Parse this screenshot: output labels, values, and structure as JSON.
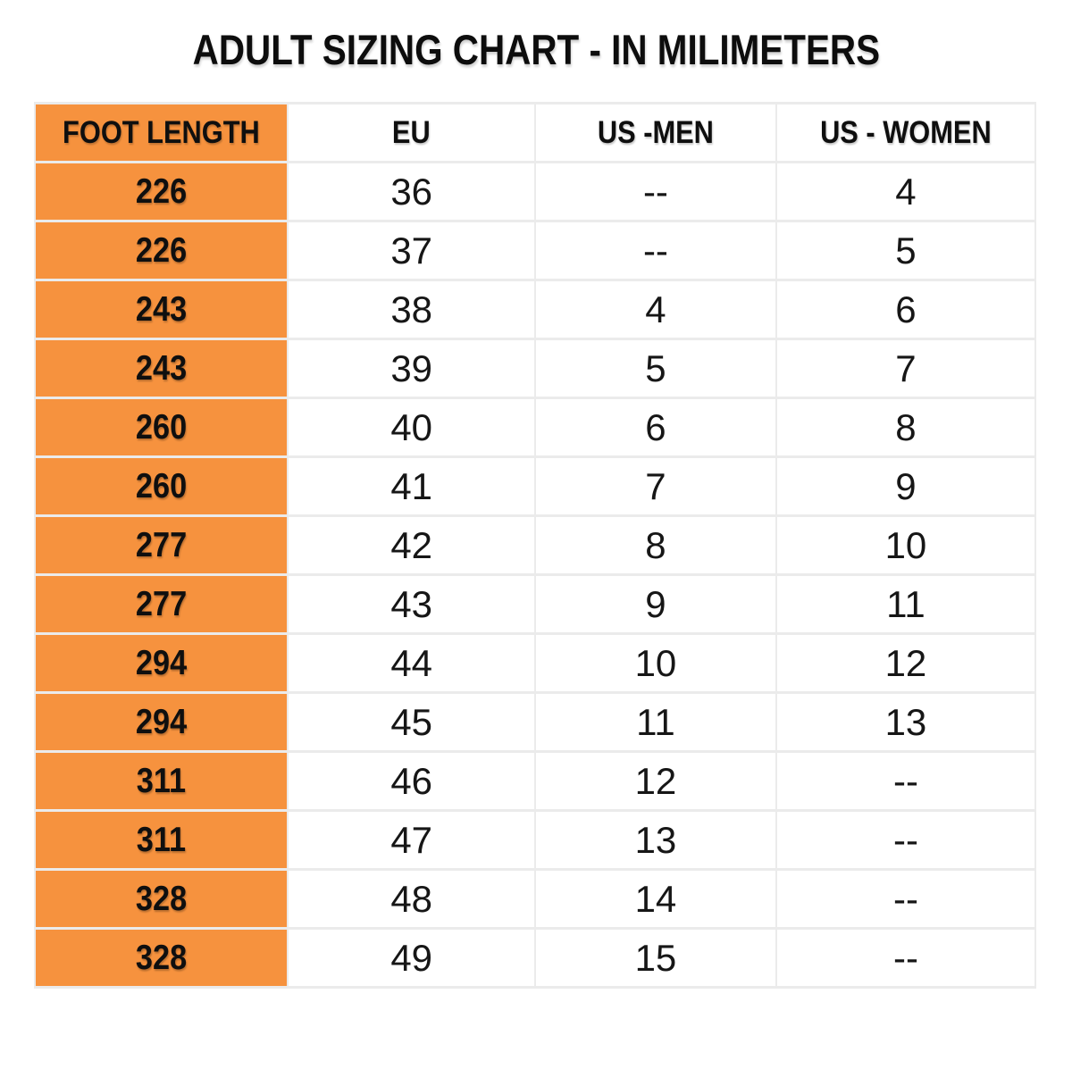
{
  "title": "ADULT SIZING CHART - IN MILIMETERS",
  "colors": {
    "accent_orange": "#F6923E",
    "grid_line": "#EBEBEB",
    "text": "#0F0F0F",
    "background": "#FFFFFF"
  },
  "chart_data": {
    "type": "table",
    "title": "ADULT SIZING CHART - IN MILIMETERS",
    "columns": [
      "FOOT LENGTH",
      "EU",
      "US -MEN",
      "US - WOMEN"
    ],
    "rows": [
      [
        "226",
        "36",
        "--",
        "4"
      ],
      [
        "226",
        "37",
        "--",
        "5"
      ],
      [
        "243",
        "38",
        "4",
        "6"
      ],
      [
        "243",
        "39",
        "5",
        "7"
      ],
      [
        "260",
        "40",
        "6",
        "8"
      ],
      [
        "260",
        "41",
        "7",
        "9"
      ],
      [
        "277",
        "42",
        "8",
        "10"
      ],
      [
        "277",
        "43",
        "9",
        "11"
      ],
      [
        "294",
        "44",
        "10",
        "12"
      ],
      [
        "294",
        "45",
        "11",
        "13"
      ],
      [
        "311",
        "46",
        "12",
        "--"
      ],
      [
        "311",
        "47",
        "13",
        "--"
      ],
      [
        "328",
        "48",
        "14",
        "--"
      ],
      [
        "328",
        "49",
        "15",
        "--"
      ]
    ]
  }
}
